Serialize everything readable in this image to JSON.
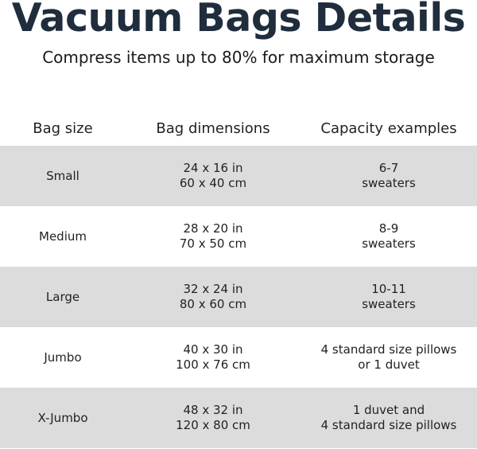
{
  "title": "Vacuum Bags Details",
  "subtitle": "Compress items up to 80% for maximum storage",
  "table": {
    "headers": [
      "Bag size",
      "Bag dimensions",
      "Capacity examples"
    ],
    "rows": [
      {
        "size": "Small",
        "dim_in": "24 x 16 in",
        "dim_cm": "60 x 40 cm",
        "cap1": "6-7",
        "cap2": "sweaters"
      },
      {
        "size": "Medium",
        "dim_in": "28 x 20 in",
        "dim_cm": "70 x 50 cm",
        "cap1": "8-9",
        "cap2": "sweaters"
      },
      {
        "size": "Large",
        "dim_in": "32 x 24 in",
        "dim_cm": "80 x 60 cm",
        "cap1": "10-11",
        "cap2": "sweaters"
      },
      {
        "size": "Jumbo",
        "dim_in": "40 x 30 in",
        "dim_cm": "100 x 76 cm",
        "cap1": "4 standard size pillows",
        "cap2": "or 1 duvet"
      },
      {
        "size": "X-Jumbo",
        "dim_in": "48 x 32 in",
        "dim_cm": "120 x 80 cm",
        "cap1": "1 duvet and",
        "cap2": "4 standard size pillows"
      }
    ]
  },
  "colors": {
    "title": "#1f2d3d",
    "stripe": "#dcdcdc"
  }
}
